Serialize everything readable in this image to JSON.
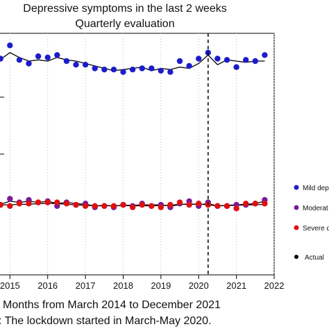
{
  "chart_data": {
    "type": "scatter",
    "title": "Depressive symptoms in the last 2 weeks",
    "subtitle": "Quarterly evaluation",
    "xlabel": "Months from March 2014 to December 2021",
    "caption": ": The lockdown started in March-May 2020.",
    "x_ticks": [
      "2015",
      "2016",
      "2017",
      "2018",
      "2019",
      "2020",
      "2021",
      "2022"
    ],
    "xlim": [
      2014.7,
      2022.0
    ],
    "ylim": [
      0,
      1
    ],
    "y_values_note": "y values are relative positions; the y axis tick labels are not visible",
    "grid": "dotted vertical lines at years",
    "legend_placement": "right",
    "vline": {
      "x": 2020.25,
      "style": "dashed"
    },
    "series": [
      {
        "name": "Mild dep",
        "color": "#1c1ccc",
        "x": [
          2014.75,
          2015.0,
          2015.25,
          2015.5,
          2015.75,
          2016.0,
          2016.25,
          2016.5,
          2016.75,
          2017.0,
          2017.25,
          2017.5,
          2017.75,
          2018.0,
          2018.25,
          2018.5,
          2018.75,
          2019.0,
          2019.25,
          2019.5,
          2019.75,
          2020.0,
          2020.25,
          2020.5,
          2020.75,
          2021.0,
          2021.25,
          2021.5,
          2021.75
        ],
        "y": [
          0.895,
          0.95,
          0.89,
          0.875,
          0.905,
          0.9,
          0.91,
          0.885,
          0.87,
          0.87,
          0.855,
          0.85,
          0.85,
          0.84,
          0.85,
          0.855,
          0.855,
          0.845,
          0.84,
          0.885,
          0.865,
          0.895,
          0.92,
          0.895,
          0.89,
          0.86,
          0.89,
          0.885,
          0.91
        ],
        "fit": [
          0.892,
          0.92,
          0.9,
          0.885,
          0.89,
          0.885,
          0.9,
          0.89,
          0.885,
          0.875,
          0.865,
          0.855,
          0.845,
          0.85,
          0.855,
          0.86,
          0.845,
          0.855,
          0.85,
          0.86,
          0.855,
          0.875,
          0.91,
          0.87,
          0.89,
          0.885,
          0.88,
          0.885,
          0.885
        ]
      },
      {
        "name": "Moderat",
        "color": "#7a1a9a",
        "x": [
          2014.75,
          2015.0,
          2015.25,
          2015.5,
          2015.75,
          2016.0,
          2016.25,
          2016.5,
          2016.75,
          2017.0,
          2017.25,
          2017.5,
          2017.75,
          2018.0,
          2018.25,
          2018.5,
          2018.75,
          2019.0,
          2019.25,
          2019.5,
          2019.75,
          2020.0,
          2020.25,
          2020.5,
          2020.75,
          2021.0,
          2021.25,
          2021.5,
          2021.75
        ],
        "y": [
          0.29,
          0.315,
          0.3,
          0.31,
          0.3,
          0.305,
          0.285,
          0.3,
          0.29,
          0.295,
          0.28,
          0.285,
          0.28,
          0.29,
          0.285,
          0.295,
          0.285,
          0.29,
          0.28,
          0.295,
          0.305,
          0.285,
          0.3,
          0.285,
          0.285,
          0.29,
          0.29,
          0.295,
          0.31
        ],
        "fit": [
          0.292,
          0.305,
          0.3,
          0.305,
          0.3,
          0.305,
          0.295,
          0.3,
          0.295,
          0.292,
          0.285,
          0.288,
          0.285,
          0.288,
          0.288,
          0.29,
          0.29,
          0.29,
          0.285,
          0.29,
          0.295,
          0.29,
          0.295,
          0.285,
          0.288,
          0.29,
          0.292,
          0.295,
          0.305
        ]
      },
      {
        "name": "Severe d",
        "color": "#e01010",
        "x": [
          2014.75,
          2015.0,
          2015.25,
          2015.5,
          2015.75,
          2016.0,
          2016.25,
          2016.5,
          2016.75,
          2017.0,
          2017.25,
          2017.5,
          2017.75,
          2018.0,
          2018.25,
          2018.5,
          2018.75,
          2019.0,
          2019.25,
          2019.5,
          2019.75,
          2020.0,
          2020.25,
          2020.5,
          2020.75,
          2021.0,
          2021.25,
          2021.5,
          2021.75
        ],
        "y": [
          0.29,
          0.285,
          0.295,
          0.295,
          0.3,
          0.3,
          0.3,
          0.295,
          0.29,
          0.285,
          0.285,
          0.285,
          0.285,
          0.29,
          0.28,
          0.29,
          0.285,
          0.28,
          0.29,
          0.3,
          0.29,
          0.295,
          0.29,
          0.285,
          0.285,
          0.275,
          0.295,
          0.295,
          0.295
        ],
        "fit": [
          0.29,
          0.29,
          0.292,
          0.292,
          0.295,
          0.296,
          0.295,
          0.292,
          0.29,
          0.288,
          0.286,
          0.286,
          0.286,
          0.287,
          0.286,
          0.286,
          0.286,
          0.287,
          0.288,
          0.292,
          0.292,
          0.293,
          0.29,
          0.286,
          0.287,
          0.288,
          0.29,
          0.29,
          0.292
        ]
      }
    ],
    "legend": [
      {
        "label": "Mild dep",
        "color": "#1c1ccc"
      },
      {
        "label": "Moderat",
        "color": "#7a1a9a"
      },
      {
        "label": "Severe d",
        "color": "#e01010"
      },
      {
        "label": "Actual",
        "color": "#000000"
      }
    ]
  }
}
